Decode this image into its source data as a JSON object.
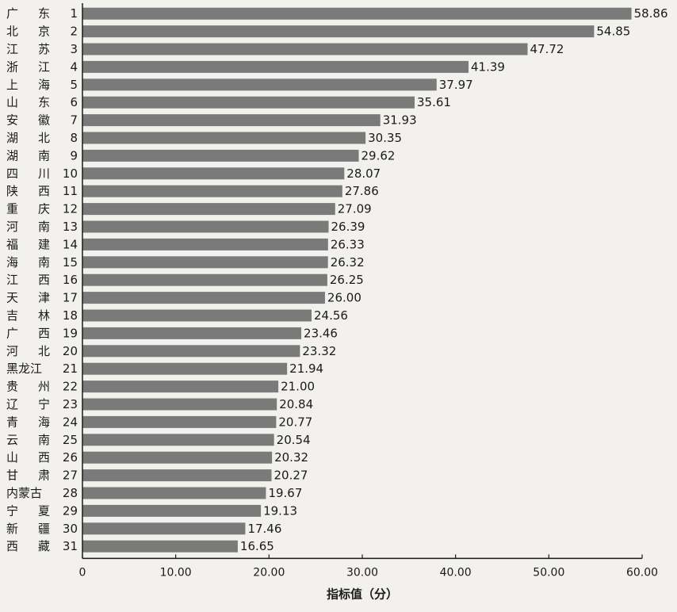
{
  "chart_data": {
    "type": "bar",
    "orientation": "horizontal",
    "title": "",
    "xlabel": "指标值（分）",
    "ylabel": "",
    "xlim": [
      0,
      60
    ],
    "x_ticks": [
      "0",
      "10.00",
      "20.00",
      "30.00",
      "40.00",
      "50.00",
      "60.00"
    ],
    "grid": false,
    "bar_color": "#7a7a7a",
    "categories": [
      {
        "name": "广 东",
        "rank": "1"
      },
      {
        "name": "北 京",
        "rank": "2"
      },
      {
        "name": "江 苏",
        "rank": "3"
      },
      {
        "name": "浙 江",
        "rank": "4"
      },
      {
        "name": "上 海",
        "rank": "5"
      },
      {
        "name": "山 东",
        "rank": "6"
      },
      {
        "name": "安 徽",
        "rank": "7"
      },
      {
        "name": "湖 北",
        "rank": "8"
      },
      {
        "name": "湖 南",
        "rank": "9"
      },
      {
        "name": "四 川",
        "rank": "10"
      },
      {
        "name": "陕 西",
        "rank": "11"
      },
      {
        "name": "重 庆",
        "rank": "12"
      },
      {
        "name": "河 南",
        "rank": "13"
      },
      {
        "name": "福 建",
        "rank": "14"
      },
      {
        "name": "海 南",
        "rank": "15"
      },
      {
        "name": "江 西",
        "rank": "16"
      },
      {
        "name": "天 津",
        "rank": "17"
      },
      {
        "name": "吉 林",
        "rank": "18"
      },
      {
        "name": "广 西",
        "rank": "19"
      },
      {
        "name": "河 北",
        "rank": "20"
      },
      {
        "name": "黑龙江",
        "rank": "21"
      },
      {
        "name": "贵 州",
        "rank": "22"
      },
      {
        "name": "辽 宁",
        "rank": "23"
      },
      {
        "name": "青 海",
        "rank": "24"
      },
      {
        "name": "云 南",
        "rank": "25"
      },
      {
        "name": "山 西",
        "rank": "26"
      },
      {
        "name": "甘 肃",
        "rank": "27"
      },
      {
        "name": "内蒙古",
        "rank": "28"
      },
      {
        "name": "宁 夏",
        "rank": "29"
      },
      {
        "name": "新 疆",
        "rank": "30"
      },
      {
        "name": "西 藏",
        "rank": "31"
      }
    ],
    "values": [
      58.86,
      54.85,
      47.72,
      41.39,
      37.97,
      35.61,
      31.93,
      30.35,
      29.62,
      28.07,
      27.86,
      27.09,
      26.39,
      26.33,
      26.32,
      26.25,
      26.0,
      24.56,
      23.46,
      23.32,
      21.94,
      21.0,
      20.84,
      20.77,
      20.54,
      20.32,
      20.27,
      19.67,
      19.13,
      17.46,
      16.65
    ],
    "value_labels": [
      "58.86",
      "54.85",
      "47.72",
      "41.39",
      "37.97",
      "35.61",
      "31.93",
      "30.35",
      "29.62",
      "28.07",
      "27.86",
      "27.09",
      "26.39",
      "26.33",
      "26.32",
      "26.25",
      "26.00",
      "24.56",
      "23.46",
      "23.32",
      "21.94",
      "21.00",
      "20.84",
      "20.77",
      "20.54",
      "20.32",
      "20.27",
      "19.67",
      "19.13",
      "17.46",
      "16.65"
    ]
  }
}
